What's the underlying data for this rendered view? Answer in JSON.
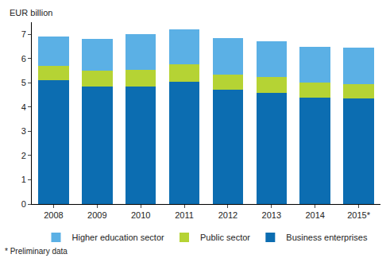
{
  "chart_data": {
    "type": "bar",
    "stacked": true,
    "y_label": "EUR billion",
    "footnote": "* Preliminary data",
    "categories": [
      "2008",
      "2009",
      "2010",
      "2011",
      "2012",
      "2013",
      "2014",
      "2015*"
    ],
    "series": [
      {
        "name": "Business enterprises",
        "color": "#0c6db1",
        "values": [
          5.1,
          4.85,
          4.85,
          5.05,
          4.7,
          4.6,
          4.4,
          4.35
        ]
      },
      {
        "name": "Public sector",
        "color": "#b5d334",
        "values": [
          0.6,
          0.65,
          0.7,
          0.7,
          0.65,
          0.65,
          0.6,
          0.6
        ]
      },
      {
        "name": "Higher education sector",
        "color": "#5bb0e5",
        "values": [
          1.2,
          1.3,
          1.45,
          1.45,
          1.5,
          1.45,
          1.5,
          1.5
        ]
      }
    ],
    "ylim": [
      0,
      7.5
    ],
    "yticks": [
      0,
      1,
      2,
      3,
      4,
      5,
      6,
      7
    ],
    "grid": false,
    "legend": "bottom"
  }
}
